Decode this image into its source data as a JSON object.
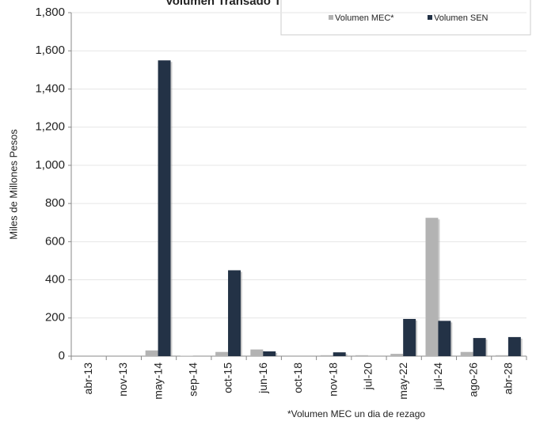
{
  "chart_data": {
    "type": "bar",
    "title": "Volumen Transado TES PESOS",
    "y_label": "Miles de Millones Pesos",
    "footnote": "*Volumen MEC un dia de rezago",
    "categories": [
      "abr-13",
      "nov-13",
      "may-14",
      "sep-14",
      "oct-15",
      "jun-16",
      "oct-18",
      "nov-18",
      "jul-20",
      "may-22",
      "jul-24",
      "ago-26",
      "abr-28"
    ],
    "series": [
      {
        "name": "Volumen MEC*",
        "color": "#b3b3b3",
        "values": [
          0,
          0,
          30,
          2,
          22,
          35,
          0,
          5,
          5,
          12,
          725,
          22,
          5
        ]
      },
      {
        "name": "Volumen SEN",
        "color": "#233246",
        "values": [
          0,
          0,
          1550,
          0,
          450,
          25,
          0,
          20,
          0,
          195,
          185,
          95,
          100
        ]
      }
    ],
    "ylim": [
      0,
      1800
    ],
    "yticks": [
      0,
      200,
      400,
      600,
      800,
      {
        "value": 1000,
        "label": "1,000"
      },
      {
        "value": 1200,
        "label": "1,200"
      },
      {
        "value": 1400,
        "label": "1,400"
      },
      {
        "value": 1600,
        "label": "1,600"
      },
      {
        "value": 1800,
        "label": "1,800"
      }
    ],
    "grid": true,
    "legend": "top-right"
  }
}
